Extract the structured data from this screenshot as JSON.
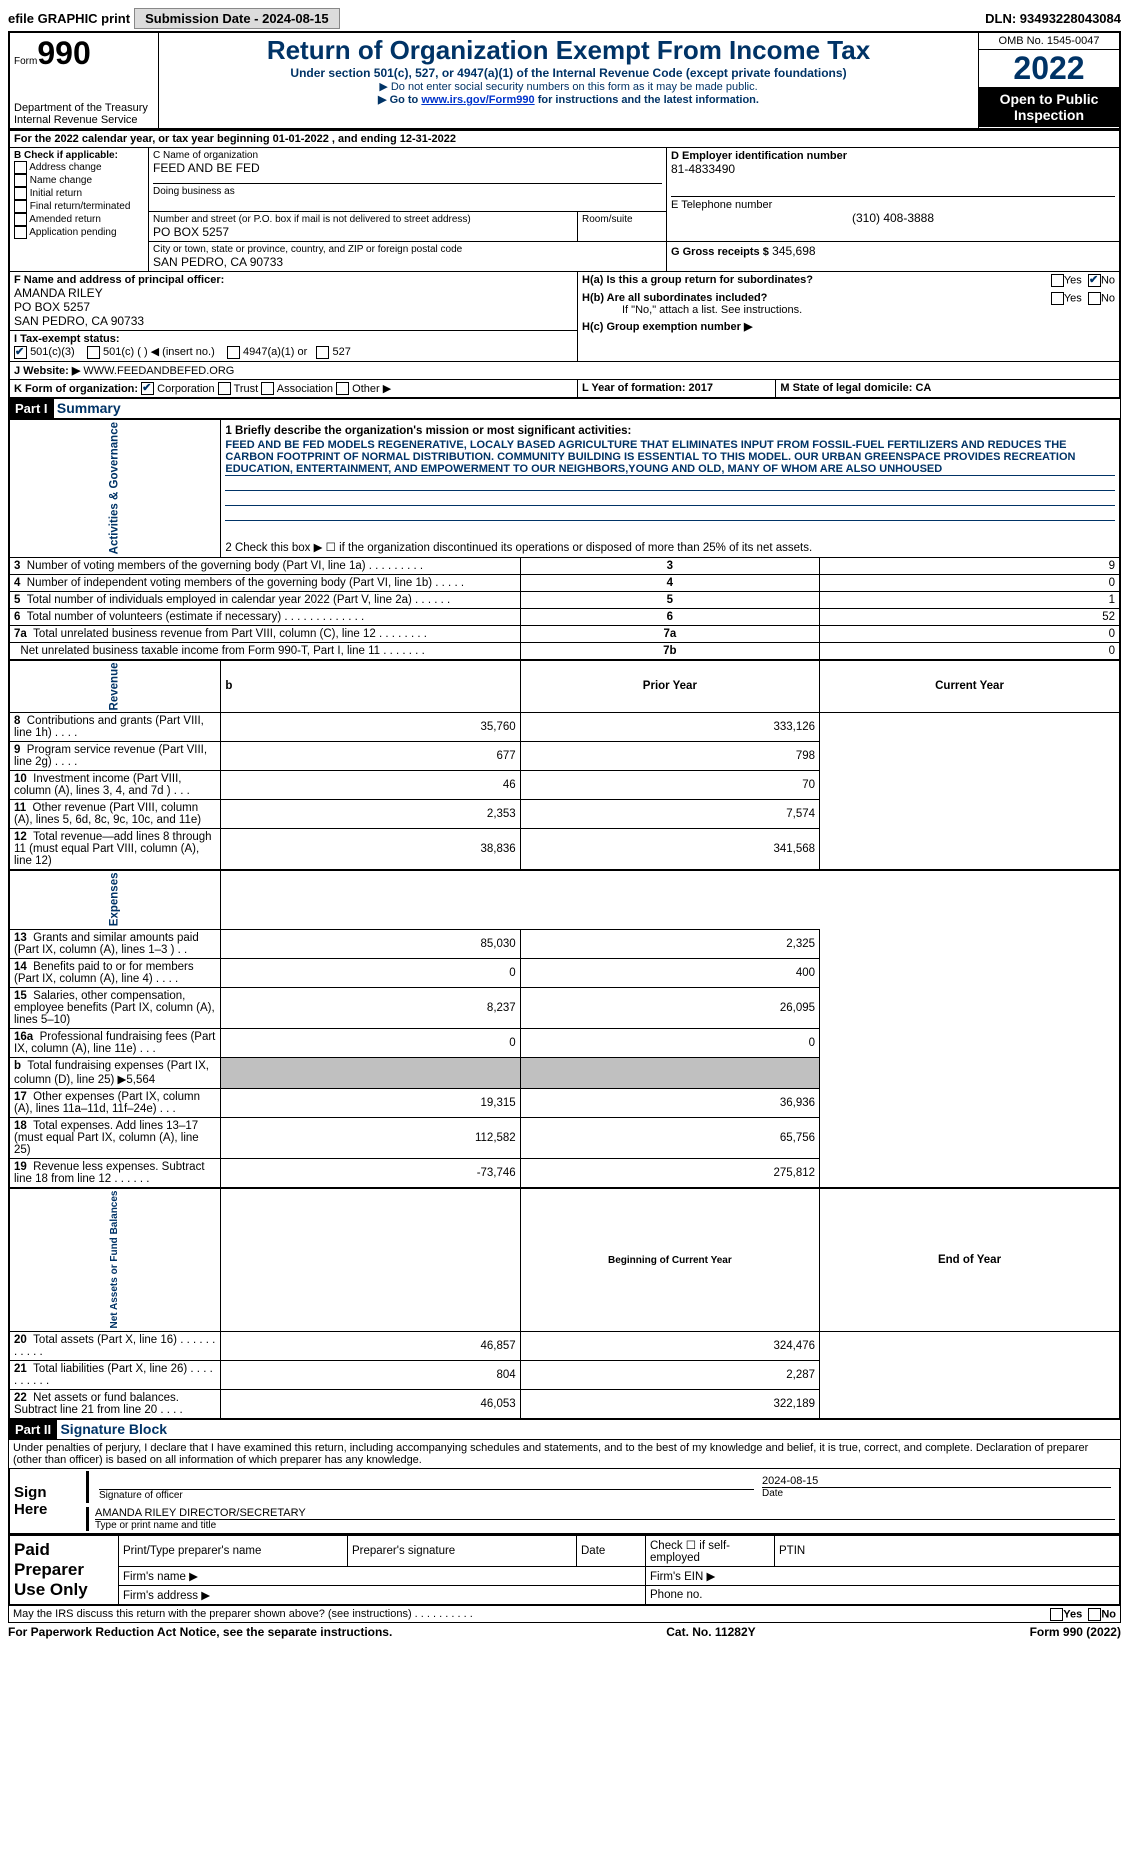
{
  "topbar": {
    "efile": "efile GRAPHIC print",
    "submission": "Submission Date - 2024-08-15",
    "dln": "DLN: 93493228043084"
  },
  "header": {
    "form_word": "Form",
    "form_num": "990",
    "title": "Return of Organization Exempt From Income Tax",
    "subtitle": "Under section 501(c), 527, or 4947(a)(1) of the Internal Revenue Code (except private foundations)",
    "note1": "▶ Do not enter social security numbers on this form as it may be made public.",
    "note2_pre": "▶ Go to ",
    "note2_link": "www.irs.gov/Form990",
    "note2_post": " for instructions and the latest information.",
    "dept": "Department of the Treasury",
    "irs": "Internal Revenue Service",
    "omb": "OMB No. 1545-0047",
    "year": "2022",
    "open": "Open to Public Inspection"
  },
  "lineA": "For the 2022 calendar year, or tax year beginning 01-01-2022   , and ending 12-31-2022",
  "boxB": {
    "label": "B Check if applicable:",
    "items": [
      "Address change",
      "Name change",
      "Initial return",
      "Final return/terminated",
      "Amended return",
      "Application pending"
    ]
  },
  "boxC": {
    "name_label": "C Name of organization",
    "name": "FEED AND BE FED",
    "dba_label": "Doing business as",
    "street_label": "Number and street (or P.O. box if mail is not delivered to street address)",
    "street": "PO BOX 5257",
    "room_label": "Room/suite",
    "city_label": "City or town, state or province, country, and ZIP or foreign postal code",
    "city": "SAN PEDRO, CA  90733"
  },
  "boxD": {
    "label": "D Employer identification number",
    "value": "81-4833490"
  },
  "boxE": {
    "label": "E Telephone number",
    "value": "(310) 408-3888"
  },
  "boxG": {
    "label": "G Gross receipts $",
    "value": "345,698"
  },
  "boxF": {
    "label": "F  Name and address of principal officer:",
    "name": "AMANDA RILEY",
    "addr1": "PO BOX 5257",
    "addr2": "SAN PEDRO, CA  90733"
  },
  "boxH": {
    "a": "H(a)  Is this a group return for subordinates?",
    "b": "H(b)  Are all subordinates included?",
    "b_note": "If \"No,\" attach a list. See instructions.",
    "c": "H(c)  Group exemption number ▶",
    "yes": "Yes",
    "no": "No"
  },
  "boxI": {
    "label": "I    Tax-exempt status:",
    "o1": "501(c)(3)",
    "o2": "501(c) (   ) ◀ (insert no.)",
    "o3": "4947(a)(1) or",
    "o4": "527"
  },
  "boxJ": {
    "label": "J   Website: ▶",
    "value": "WWW.FEEDANDBEFED.ORG"
  },
  "boxK": {
    "label": "K Form of organization:",
    "o1": "Corporation",
    "o2": "Trust",
    "o3": "Association",
    "o4": "Other ▶"
  },
  "boxL": {
    "label": "L Year of formation: 2017"
  },
  "boxM": {
    "label": "M State of legal domicile: CA"
  },
  "part1": {
    "header": "Part I",
    "title": "Summary",
    "side1": "Activities & Governance",
    "side2": "Revenue",
    "side3": "Expenses",
    "side4": "Net Assets or Fund Balances",
    "l1_label": "1  Briefly describe the organization's mission or most significant activities:",
    "l1_text": "FEED AND BE FED MODELS REGENERATIVE, LOCALY BASED AGRICULTURE THAT ELIMINATES INPUT FROM FOSSIL-FUEL FERTILIZERS AND REDUCES THE CARBON FOOTPRINT OF NORMAL DISTRIBUTION. COMMUNITY BUILDING IS ESSENTIAL TO THIS MODEL. OUR URBAN GREENSPACE PROVIDES RECREATION EDUCATION, ENTERTAINMENT, AND EMPOWERMENT TO OUR NEIGHBORS,YOUNG AND OLD, MANY OF WHOM ARE ALSO UNHOUSED",
    "l2": "2     Check this box ▶ ☐  if the organization discontinued its operations or disposed of more than 25% of its net assets.",
    "rows_gov": [
      {
        "n": "3",
        "t": "Number of voting members of the governing body (Part VI, line 1a)   .    .    .    .    .    .    .    .    .",
        "k": "3",
        "v": "9"
      },
      {
        "n": "4",
        "t": "Number of independent voting members of the governing body (Part VI, line 1b)    .    .    .    .    .",
        "k": "4",
        "v": "0"
      },
      {
        "n": "5",
        "t": "Total number of individuals employed in calendar year 2022 (Part V, line 2a)    .    .    .    .    .    .",
        "k": "5",
        "v": "1"
      },
      {
        "n": "6",
        "t": "Total number of volunteers (estimate if necessary)   .    .    .    .    .    .    .    .    .    .    .    .    .",
        "k": "6",
        "v": "52"
      },
      {
        "n": "7a",
        "t": "Total unrelated business revenue from Part VIII, column (C), line 12   .    .    .    .    .    .    .    .",
        "k": "7a",
        "v": "0"
      },
      {
        "n": "",
        "t": "Net unrelated business taxable income from Form 990-T, Part I, line 11   .    .    .    .    .    .    .",
        "k": "7b",
        "v": "0"
      }
    ],
    "hdr_prior": "Prior Year",
    "hdr_curr": "Current Year",
    "rows_rev": [
      {
        "n": "8",
        "t": "Contributions and grants (Part VIII, line 1h)   .    .    .    .",
        "p": "35,760",
        "c": "333,126"
      },
      {
        "n": "9",
        "t": "Program service revenue (Part VIII, line 2g)   .    .    .    .",
        "p": "677",
        "c": "798"
      },
      {
        "n": "10",
        "t": "Investment income (Part VIII, column (A), lines 3, 4, and 7d )   .    .    .",
        "p": "46",
        "c": "70"
      },
      {
        "n": "11",
        "t": "Other revenue (Part VIII, column (A), lines 5, 6d, 8c, 9c, 10c, and 11e)",
        "p": "2,353",
        "c": "7,574"
      },
      {
        "n": "12",
        "t": "Total revenue—add lines 8 through 11 (must equal Part VIII, column (A), line 12)",
        "p": "38,836",
        "c": "341,568"
      }
    ],
    "rows_exp": [
      {
        "n": "13",
        "t": "Grants and similar amounts paid (Part IX, column (A), lines 1–3 )   .    .",
        "p": "85,030",
        "c": "2,325"
      },
      {
        "n": "14",
        "t": "Benefits paid to or for members (Part IX, column (A), line 4)   .    .    .    .",
        "p": "0",
        "c": "400"
      },
      {
        "n": "15",
        "t": "Salaries, other compensation, employee benefits (Part IX, column (A), lines 5–10)",
        "p": "8,237",
        "c": "26,095"
      },
      {
        "n": "16a",
        "t": "Professional fundraising fees (Part IX, column (A), line 11e)   .    .    .",
        "p": "0",
        "c": "0"
      },
      {
        "n": "b",
        "t": "Total fundraising expenses (Part IX, column (D), line 25) ▶5,564",
        "p": "",
        "c": "",
        "shaded": true
      },
      {
        "n": "17",
        "t": "Other expenses (Part IX, column (A), lines 11a–11d, 11f–24e)   .    .    .",
        "p": "19,315",
        "c": "36,936"
      },
      {
        "n": "18",
        "t": "Total expenses. Add lines 13–17 (must equal Part IX, column (A), line 25)",
        "p": "112,582",
        "c": "65,756"
      },
      {
        "n": "19",
        "t": "Revenue less expenses. Subtract line 18 from line 12   .    .    .    .    .    .",
        "p": "-73,746",
        "c": "275,812"
      }
    ],
    "hdr_beg": "Beginning of Current Year",
    "hdr_end": "End of Year",
    "rows_net": [
      {
        "n": "20",
        "t": "Total assets (Part X, line 16)   .    .    .    .    .    .    .    .    .    .    .",
        "p": "46,857",
        "c": "324,476"
      },
      {
        "n": "21",
        "t": "Total liabilities (Part X, line 26)   .    .    .    .    .    .    .    .    .    .",
        "p": "804",
        "c": "2,287"
      },
      {
        "n": "22",
        "t": "Net assets or fund balances. Subtract line 21 from line 20   .    .    .    .",
        "p": "46,053",
        "c": "322,189"
      }
    ]
  },
  "part2": {
    "header": "Part II",
    "title": "Signature Block",
    "declaration": "Under penalties of perjury, I declare that I have examined this return, including accompanying schedules and statements, and to the best of my knowledge and belief, it is true, correct, and complete. Declaration of preparer (other than officer) is based on all information of which preparer has any knowledge.",
    "sign_here": "Sign Here",
    "sig_officer": "Signature of officer",
    "date": "Date",
    "date_val": "2024-08-15",
    "name_title": "AMANDA RILEY  DIRECTOR/SECRETARY",
    "type_name": "Type or print name and title",
    "paid": "Paid Preparer Use Only",
    "p_name": "Print/Type preparer's name",
    "p_sig": "Preparer's signature",
    "p_date": "Date",
    "p_check": "Check ☐ if self-employed",
    "p_ptin": "PTIN",
    "p_firm": "Firm's name    ▶",
    "p_ein": "Firm's EIN ▶",
    "p_addr": "Firm's address ▶",
    "p_phone": "Phone no.",
    "discuss": "May the IRS discuss this return with the preparer shown above? (see instructions)   .    .    .    .    .    .    .    .    .    .",
    "yes": "Yes",
    "no": "No"
  },
  "footer": {
    "left": "For Paperwork Reduction Act Notice, see the separate instructions.",
    "mid": "Cat. No. 11282Y",
    "right": "Form 990 (2022)"
  }
}
